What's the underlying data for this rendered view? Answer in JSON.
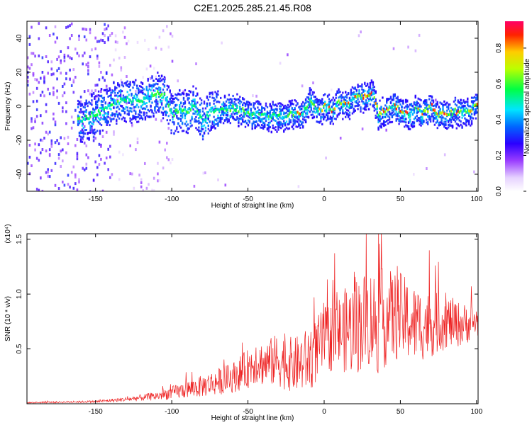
{
  "title": "C2E1.2025.285.21.45.R08",
  "chart_data": [
    {
      "type": "heatmap",
      "xlabel": "Height of straight line (km)",
      "ylabel": "Frequency (Hz)",
      "xlim": [
        -195,
        101
      ],
      "ylim": [
        -50,
        50
      ],
      "xticks": [
        -150,
        -100,
        -50,
        0,
        50,
        100
      ],
      "yticks": [
        -40,
        -20,
        0,
        20,
        40
      ],
      "ridge": {
        "x": [
          -160,
          -150,
          -140,
          -130,
          -120,
          -110,
          -105,
          -100,
          -95,
          -90,
          -85,
          -80,
          -75,
          -70,
          -60,
          -50,
          -40,
          -30,
          -20,
          -15,
          -10,
          -5,
          0,
          5,
          10,
          15,
          20,
          25,
          30,
          32,
          35,
          40,
          45,
          50,
          55,
          60,
          65,
          70,
          75,
          80,
          85,
          90,
          95,
          100
        ],
        "y": [
          -8,
          -4,
          2,
          4,
          3,
          8,
          6,
          -5,
          -2,
          -3,
          0,
          -10,
          -2,
          -3,
          -1,
          -4,
          -5,
          -6,
          -4,
          -4,
          3,
          -3,
          0,
          -2,
          3,
          1,
          6,
          5,
          8,
          6,
          -4,
          -3,
          0,
          -3,
          -5,
          -2,
          -4,
          0,
          -5,
          -4,
          -3,
          -4,
          -2,
          1
        ]
      },
      "colorbar": {
        "label": "Normalized spectral amplitude",
        "ticks": [
          "0.0",
          "0.2",
          "0.4",
          "0.6",
          "0.8"
        ],
        "range": [
          0,
          0.95
        ]
      }
    },
    {
      "type": "line",
      "xlabel": "Height of straight line (km)",
      "ylabel": "SNR (10 * v/v)",
      "scale_label": "(x10⁴)",
      "xlim": [
        -195,
        101
      ],
      "ylim": [
        0,
        1.55
      ],
      "xticks": [
        -150,
        -100,
        -50,
        0,
        50,
        100
      ],
      "yticks": [
        "0.5",
        "1.0",
        "1.5"
      ],
      "series": [
        {
          "name": "SNR",
          "color": "#ee2222",
          "envelope": {
            "x": [
              -195,
              -150,
              -130,
              -110,
              -100,
              -90,
              -80,
              -70,
              -60,
              -50,
              -45,
              -40,
              -30,
              -20,
              -10,
              0,
              10,
              20,
              25,
              30,
              35,
              40,
              50,
              60,
              70,
              80,
              90,
              100
            ],
            "mean": [
              0.01,
              0.02,
              0.04,
              0.07,
              0.1,
              0.13,
              0.16,
              0.2,
              0.24,
              0.32,
              0.4,
              0.36,
              0.4,
              0.35,
              0.4,
              0.58,
              0.65,
              0.7,
              0.75,
              0.78,
              0.75,
              0.78,
              0.8,
              0.72,
              0.72,
              0.75,
              0.72,
              0.75
            ],
            "amp": [
              0.005,
              0.01,
              0.02,
              0.04,
              0.06,
              0.08,
              0.1,
              0.12,
              0.14,
              0.18,
              0.22,
              0.2,
              0.25,
              0.25,
              0.3,
              0.3,
              0.35,
              0.45,
              0.45,
              0.45,
              0.5,
              0.45,
              0.4,
              0.35,
              0.3,
              0.25,
              0.2,
              0.15
            ]
          }
        }
      ]
    }
  ]
}
